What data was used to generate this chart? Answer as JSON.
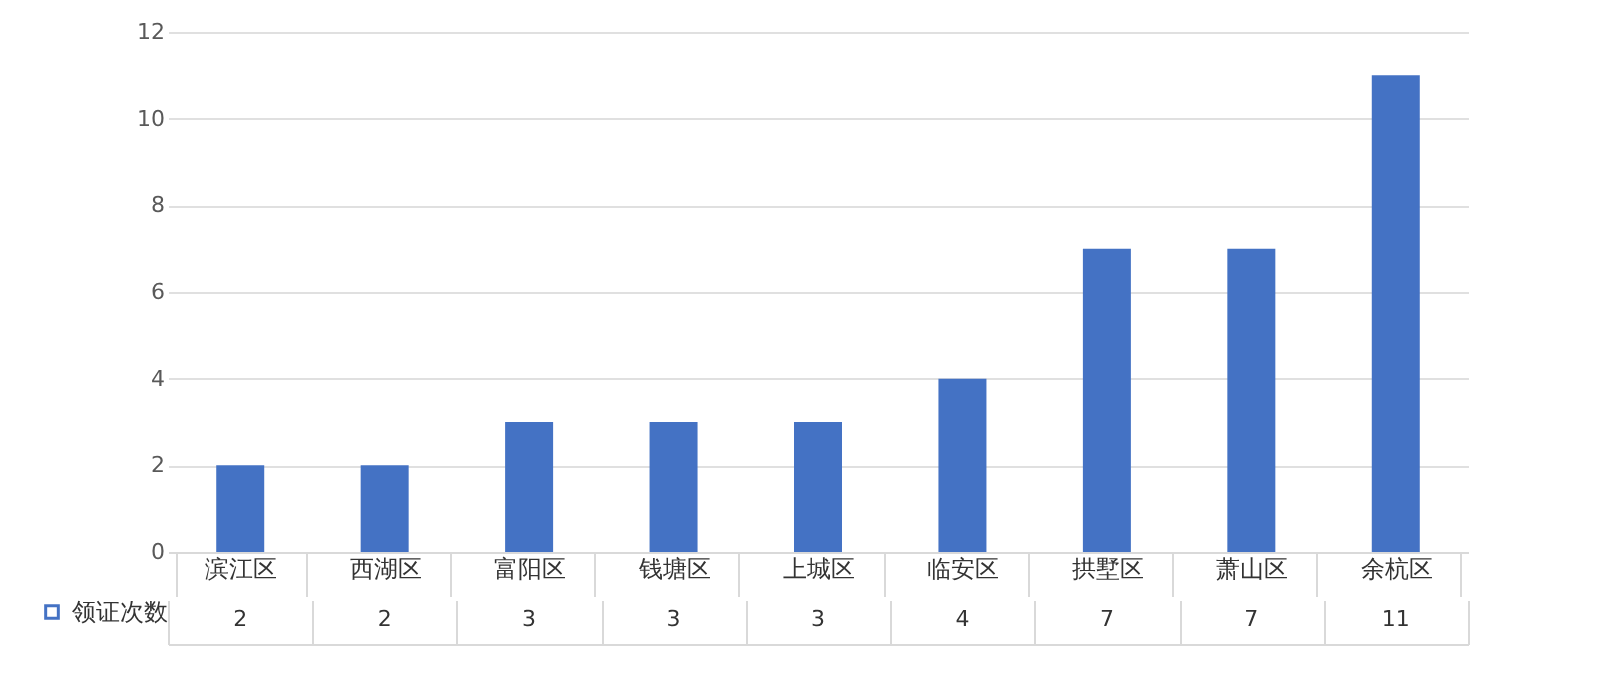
{
  "chart_data": {
    "type": "bar",
    "categories": [
      "滨江区",
      "西湖区",
      "富阳区",
      "钱塘区",
      "上城区",
      "临安区",
      "拱墅区",
      "萧山区",
      "余杭区"
    ],
    "series": [
      {
        "name": "领证次数",
        "color": "#4472c4",
        "values": [
          2,
          2,
          3,
          3,
          3,
          4,
          7,
          7,
          11
        ]
      }
    ],
    "ylim": [
      0,
      12
    ],
    "yticks": [
      0,
      2,
      4,
      6,
      8,
      10,
      12
    ],
    "grid": "y",
    "data_labels": true,
    "legend": "bottom left"
  }
}
